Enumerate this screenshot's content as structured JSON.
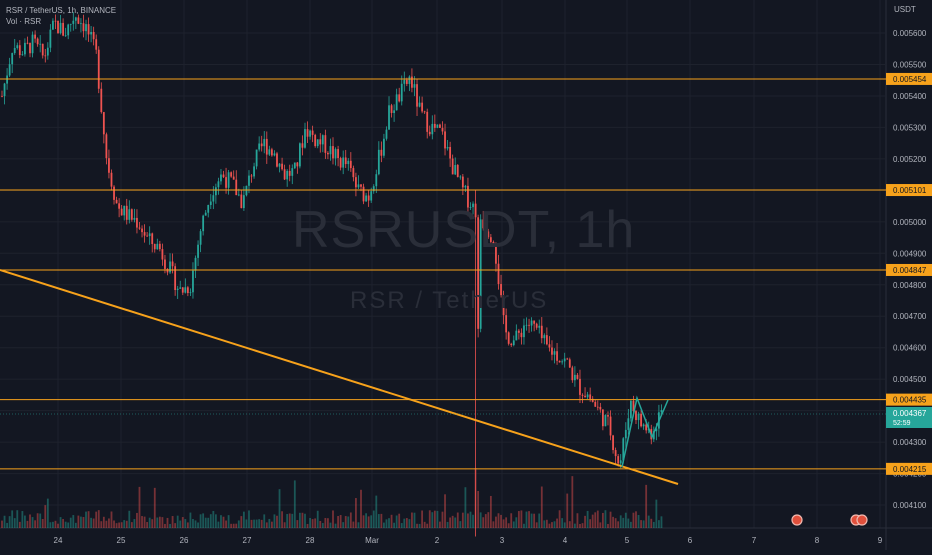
{
  "legend": {
    "symbol_line": "RSR / TetherUS, 1h, BINANCE",
    "volume_line": "Vol · RSR"
  },
  "watermark": {
    "ticker": "RSRUSDT, 1h",
    "name": "RSR / TetherUS"
  },
  "price_axis": {
    "unit": "USDT",
    "min": 0.004,
    "max": 0.0057,
    "ticks": [
      "0.005600",
      "0.005500",
      "0.005400",
      "0.005300",
      "0.005200",
      "0.005100",
      "0.005000",
      "0.004900",
      "0.004800",
      "0.004700",
      "0.004600",
      "0.004500",
      "0.004400",
      "0.004300",
      "0.004200",
      "0.004100"
    ]
  },
  "time_axis": {
    "labels": [
      "24",
      "25",
      "26",
      "27",
      "28",
      "Mar",
      "2",
      "3",
      "4",
      "5",
      "6",
      "7",
      "8",
      "9"
    ]
  },
  "colors": {
    "up": "#26a69a",
    "down": "#ef5350",
    "level": "#f7a21b",
    "background": "#131722"
  },
  "chart_data": {
    "type": "candlestick",
    "horizontal_levels": [
      {
        "value": 0.005454,
        "label": "0.005454"
      },
      {
        "value": 0.005101,
        "label": "0.005101"
      },
      {
        "value": 0.004847,
        "label": "0.004847"
      },
      {
        "value": 0.004435,
        "label": "0.004435"
      },
      {
        "value": 0.004215,
        "label": "0.004215"
      }
    ],
    "trendline": {
      "from": [
        "Feb 23",
        0.00485
      ],
      "to": [
        "Mar 5 (late)",
        0.00417
      ]
    },
    "last_price": {
      "value": "0.004367",
      "countdown": "52:59"
    },
    "pattern_zigzag": [
      0.004215,
      0.00443,
      0.00434,
      0.004435
    ],
    "price_path": [
      0.0054,
      0.00556,
      0.00554,
      0.00557,
      0.00552,
      0.00563,
      0.0056,
      0.00566,
      0.00562,
      0.00553,
      0.0052,
      0.00505,
      0.00502,
      0.005,
      0.00494,
      0.00492,
      0.00485,
      0.00478,
      0.0048,
      0.00498,
      0.0051,
      0.00515,
      0.00512,
      0.00506,
      0.00518,
      0.00525,
      0.00522,
      0.00515,
      0.00516,
      0.0053,
      0.00526,
      0.00524,
      0.0052,
      0.00518,
      0.0051,
      0.00508,
      0.0052,
      0.00535,
      0.0054,
      0.00546,
      0.00534,
      0.0053,
      0.00528,
      0.00518,
      0.0051,
      0.00505,
      0.005,
      0.00495,
      0.00465,
      0.00462,
      0.00468,
      0.00466,
      0.0046,
      0.00458,
      0.00455,
      0.00448,
      0.00445,
      0.0044,
      0.00435,
      0.00422,
      0.00443,
      0.00436,
      0.00433,
      0.0044
    ]
  }
}
